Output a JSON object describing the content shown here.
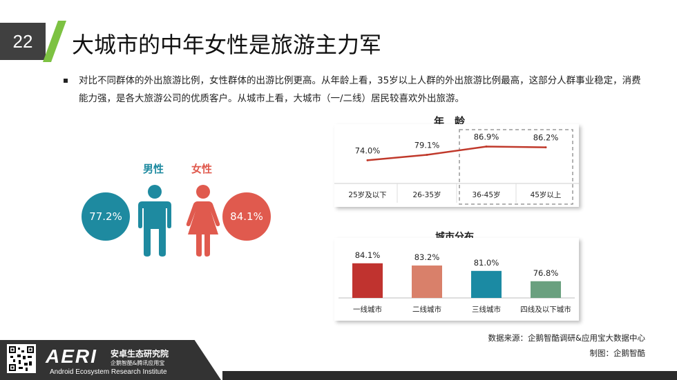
{
  "slide": {
    "number": "22",
    "title": "大城市的中年女性是旅游主力军"
  },
  "bullet": "对比不同群体的外出旅游比例，女性群体的出游比例更高。从年龄上看，35岁以上人群的外出旅游比例最高，这部分人群事业稳定，消费能力强，是各大旅游公司的优质客户。从城市上看，大城市（一/二线）居民较喜欢外出旅游。",
  "gender": {
    "male": {
      "label": "男性",
      "value": "77.2%",
      "color": "#1e8aa0"
    },
    "female": {
      "label": "女性",
      "value": "84.1%",
      "color": "#e05a4e"
    }
  },
  "chart_data": [
    {
      "type": "line",
      "title": "年　龄",
      "categories": [
        "25岁及以下",
        "26-35岁",
        "36-45岁",
        "45岁以上"
      ],
      "values": [
        74.0,
        79.1,
        86.9,
        86.2
      ],
      "labels": [
        "74.0%",
        "79.1%",
        "86.9%",
        "86.2%"
      ],
      "color": "#c0392b",
      "highlight": [
        "36-45岁",
        "45岁以上"
      ],
      "ylim": [
        60,
        95
      ]
    },
    {
      "type": "bar",
      "title": "城市分布",
      "categories": [
        "一线城市",
        "二线城市",
        "三线城市",
        "四线及以下城市"
      ],
      "values": [
        84.1,
        83.2,
        81.0,
        76.8
      ],
      "labels": [
        "84.1%",
        "83.2%",
        "81.0%",
        "76.8%"
      ],
      "colors": [
        "#c0332f",
        "#d9806a",
        "#1b8aa3",
        "#6aa07f"
      ],
      "ylim": [
        70,
        86
      ]
    }
  ],
  "footer": {
    "source": "数据来源：企鹅智酷调研&应用宝大数据中心",
    "made_by": "制图：企鹅智酷",
    "logo_text": "AERI",
    "logo_cn": "安卓生态研究院",
    "logo_cn_sub": "企鹅智酷&腾讯应用宝",
    "logo_en": "Android Ecosystem Research Institute"
  }
}
